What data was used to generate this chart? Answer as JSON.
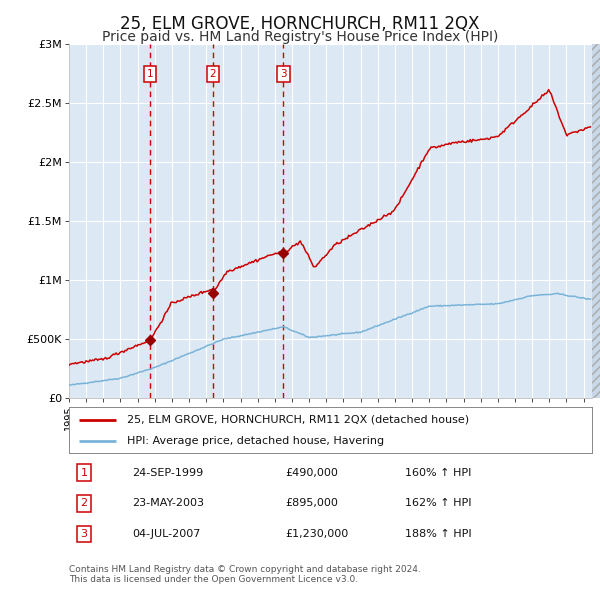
{
  "title": "25, ELM GROVE, HORNCHURCH, RM11 2QX",
  "subtitle": "Price paid vs. HM Land Registry's House Price Index (HPI)",
  "title_fontsize": 12,
  "subtitle_fontsize": 10,
  "plot_bg_color": "#dce9f5",
  "grid_color": "#ffffff",
  "hpi_line_color": "#7ab3d8",
  "price_line_color": "#cc0000",
  "marker_color": "#990000",
  "sale_dates": [
    1999.73,
    2003.39,
    2007.5
  ],
  "sale_prices": [
    490000,
    895000,
    1230000
  ],
  "sale_labels": [
    "1",
    "2",
    "3"
  ],
  "legend_line1": "25, ELM GROVE, HORNCHURCH, RM11 2QX (detached house)",
  "legend_line2": "HPI: Average price, detached house, Havering",
  "table_rows": [
    [
      "1",
      "24-SEP-1999",
      "£490,000",
      "160% ↑ HPI"
    ],
    [
      "2",
      "23-MAY-2003",
      "£895,000",
      "162% ↑ HPI"
    ],
    [
      "3",
      "04-JUL-2007",
      "£1,230,000",
      "188% ↑ HPI"
    ]
  ],
  "footnote": "Contains HM Land Registry data © Crown copyright and database right 2024.\nThis data is licensed under the Open Government Licence v3.0.",
  "ylim": [
    0,
    3000000
  ],
  "xlim_start": 1995.0,
  "xlim_end": 2025.5
}
